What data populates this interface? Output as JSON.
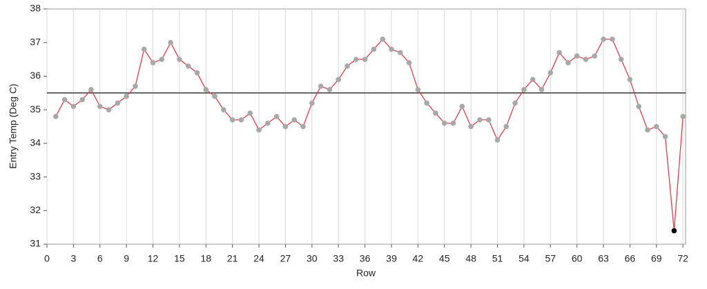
{
  "chart_data": {
    "type": "line",
    "x_label": "Row",
    "y_label": "Entry Temp (Deg C)",
    "x": [
      1,
      2,
      3,
      4,
      5,
      6,
      7,
      8,
      9,
      10,
      11,
      12,
      13,
      14,
      15,
      16,
      17,
      18,
      19,
      20,
      21,
      22,
      23,
      24,
      25,
      26,
      27,
      28,
      29,
      30,
      31,
      32,
      33,
      34,
      35,
      36,
      37,
      38,
      39,
      40,
      41,
      42,
      43,
      44,
      45,
      46,
      47,
      48,
      49,
      50,
      51,
      52,
      53,
      54,
      55,
      56,
      57,
      58,
      59,
      60,
      61,
      62,
      63,
      64,
      65,
      66,
      67,
      68,
      69,
      70,
      71,
      72
    ],
    "series": [
      {
        "color": "#e03a4a",
        "marker_color": "#a8a8a8",
        "values": [
          34.8,
          35.3,
          35.1,
          35.3,
          35.6,
          35.1,
          35.0,
          35.2,
          35.4,
          35.7,
          36.8,
          36.4,
          36.5,
          37.0,
          36.5,
          36.3,
          36.1,
          35.6,
          35.4,
          35.0,
          34.7,
          34.7,
          34.9,
          34.4,
          34.6,
          34.8,
          34.5,
          34.7,
          34.5,
          35.2,
          35.7,
          35.6,
          35.9,
          36.3,
          36.5,
          36.5,
          36.8,
          37.1,
          36.8,
          36.7,
          36.4,
          35.6,
          35.2,
          34.9,
          34.6,
          34.6,
          35.1,
          34.5,
          34.7,
          34.7,
          34.1,
          34.5,
          35.2,
          35.6,
          35.9,
          35.6,
          36.1,
          36.7,
          36.4,
          36.6,
          36.5,
          36.6,
          37.1,
          37.1,
          36.5,
          35.9,
          35.1,
          34.4,
          34.5,
          34.2,
          31.4,
          34.8
        ]
      }
    ],
    "highlight_x": 71,
    "highlight_color": "#000000",
    "reference_line": 35.5,
    "reference_color": "#111111",
    "xlim": [
      0,
      72.3
    ],
    "xticks": [
      0,
      3,
      6,
      9,
      12,
      15,
      18,
      21,
      24,
      27,
      30,
      33,
      36,
      39,
      42,
      45,
      48,
      51,
      54,
      57,
      60,
      63,
      66,
      69,
      72
    ],
    "ylim": [
      31,
      38
    ],
    "yticks": [
      31,
      32,
      33,
      34,
      35,
      36,
      37,
      38
    ],
    "grid": "x"
  }
}
